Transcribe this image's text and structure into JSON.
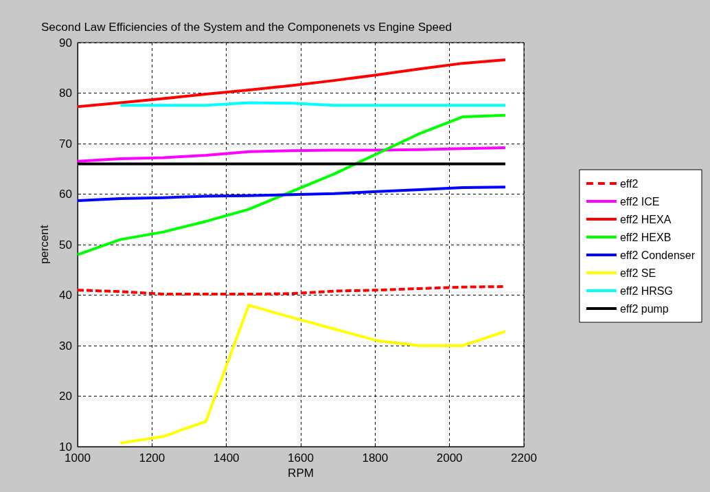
{
  "chart_data": {
    "type": "line",
    "title": "Second Law Efficiencies of the System and the Componenets vs Engine Speed",
    "xlabel": "RPM",
    "ylabel": "percent",
    "x": [
      1000,
      1115,
      1230,
      1345,
      1460,
      1575,
      1690,
      1805,
      1920,
      2035,
      2150
    ],
    "xlim": [
      1000,
      2200
    ],
    "xticks": [
      1000,
      1200,
      1400,
      1600,
      1800,
      2000,
      2200
    ],
    "ylim": [
      10,
      90
    ],
    "yticks": [
      10,
      20,
      30,
      40,
      50,
      60,
      70,
      80,
      90
    ],
    "grid": true,
    "legend": "right",
    "marker": "none",
    "series": [
      {
        "name": "eff2",
        "color": "#ff0000",
        "line_style": "dashed",
        "values": [
          41,
          40.7,
          40.2,
          40.2,
          40.2,
          40.3,
          40.8,
          41,
          41.3,
          41.6,
          41.7
        ]
      },
      {
        "name": "eff2 ICE",
        "color": "#ff00ff",
        "values": [
          66.5,
          67,
          67.2,
          67.7,
          68.4,
          68.6,
          68.7,
          68.7,
          68.8,
          69,
          69.2
        ]
      },
      {
        "name": "eff2 HEXA",
        "color": "#ff0000",
        "values": [
          77.3,
          78.1,
          78.9,
          79.8,
          80.6,
          81.5,
          82.5,
          83.6,
          84.8,
          85.9,
          86.6
        ]
      },
      {
        "name": "eff2 HEXB",
        "color": "#00ff00",
        "values": [
          48,
          51,
          52.5,
          54.6,
          57,
          60.5,
          64,
          68,
          72,
          75.3,
          75.6
        ]
      },
      {
        "name": "eff2 Condenser",
        "color": "#0000ff",
        "values": [
          58.7,
          59.1,
          59.3,
          59.6,
          59.7,
          59.9,
          60.1,
          60.5,
          60.9,
          61.3,
          61.4
        ]
      },
      {
        "name": "eff2 SE",
        "color": "#ffff00",
        "values": [
          null,
          10.7,
          12,
          15,
          38,
          35.6,
          33.3,
          31,
          30,
          30,
          32.8
        ]
      },
      {
        "name": "eff2 HRSG",
        "color": "#00ffff",
        "values": [
          null,
          77.6,
          77.6,
          77.6,
          78.1,
          78,
          77.6,
          77.6,
          77.6,
          77.6,
          77.6
        ]
      },
      {
        "name": "eff2 pump",
        "color": "#000000",
        "values": [
          66,
          66,
          66,
          66,
          66,
          66,
          66,
          66,
          66,
          66,
          66
        ]
      }
    ]
  }
}
